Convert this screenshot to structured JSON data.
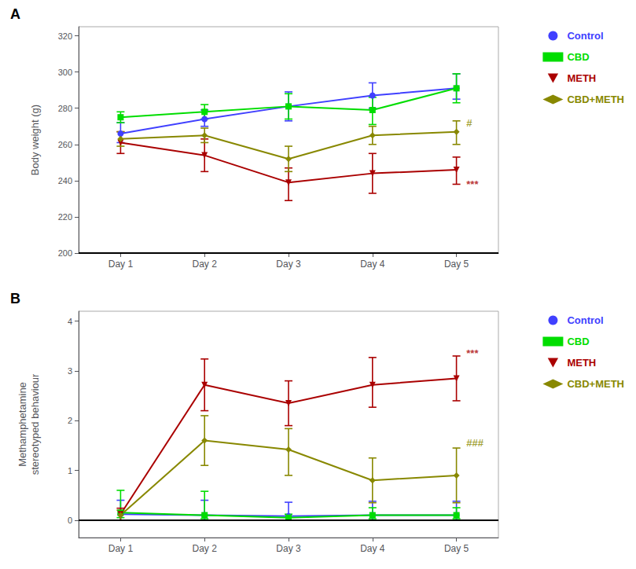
{
  "chart_data": [
    {
      "type": "line",
      "title": "A",
      "x": [
        1,
        2,
        3,
        4,
        5
      ],
      "xlim": [
        0.5,
        5.5
      ],
      "xticks": [
        {
          "value": 1,
          "label": "Day 1"
        },
        {
          "value": 2,
          "label": "Day 2"
        },
        {
          "value": 3,
          "label": "Day 3"
        },
        {
          "value": 4,
          "label": "Day 4"
        },
        {
          "value": 5,
          "label": "Day 5"
        }
      ],
      "ylabel": "Body weight (g)",
      "ylim": [
        200,
        325
      ],
      "yticks": [
        200,
        220,
        240,
        260,
        280,
        300,
        320
      ],
      "grid": false,
      "legend": "right",
      "baseline": 200,
      "series": [
        {
          "name": "Control",
          "color": "#4040FF",
          "marker": "circle",
          "values": [
            266,
            274,
            281,
            287,
            291
          ],
          "yerr_lo": [
            5,
            4,
            8,
            7,
            6
          ],
          "yerr_hi": [
            6,
            5,
            8,
            7,
            8
          ]
        },
        {
          "name": "CBD",
          "color": "#00DD00",
          "marker": "square",
          "values": [
            275,
            278,
            281,
            279,
            291
          ],
          "yerr_lo": [
            3,
            4,
            7,
            8,
            8
          ],
          "yerr_hi": [
            3,
            4,
            7,
            7,
            8
          ]
        },
        {
          "name": "METH",
          "color": "#AA0000",
          "marker": "triangle-down",
          "values": [
            261,
            254,
            239,
            244,
            246
          ],
          "yerr_lo": [
            6,
            9,
            10,
            11,
            8
          ],
          "yerr_hi": [
            6,
            9,
            8,
            11,
            7
          ]
        },
        {
          "name": "CBD+METH",
          "color": "#888800",
          "marker": "diamond",
          "values": [
            263,
            265,
            252,
            265,
            267
          ],
          "yerr_lo": [
            4,
            4,
            7,
            5,
            7
          ],
          "yerr_hi": [
            4,
            4,
            7,
            5,
            6
          ]
        }
      ],
      "annotations": [
        {
          "text": "***",
          "x": 5.1,
          "y": 238,
          "color": "#AA0000"
        },
        {
          "text": "#",
          "x": 5.1,
          "y": 272,
          "color": "#888800"
        }
      ]
    },
    {
      "type": "line",
      "title": "B",
      "x": [
        1,
        2,
        3,
        4,
        5
      ],
      "xlim": [
        0.5,
        5.5
      ],
      "xticks": [
        {
          "value": 1,
          "label": "Day 1"
        },
        {
          "value": 2,
          "label": "Day 2"
        },
        {
          "value": 3,
          "label": "Day 3"
        },
        {
          "value": 4,
          "label": "Day 4"
        },
        {
          "value": 5,
          "label": "Day 5"
        }
      ],
      "ylabel": "Methamphetamine\nstereotyped behaviour",
      "ylim": [
        -0.35,
        4.2
      ],
      "yticks": [
        0,
        1,
        2,
        3,
        4
      ],
      "grid": false,
      "legend": "right",
      "baseline": 0,
      "series": [
        {
          "name": "Control",
          "color": "#4040FF",
          "marker": "circle",
          "values": [
            0.12,
            0.1,
            0.08,
            0.1,
            0.1
          ],
          "yerr_lo": [
            0.12,
            0.1,
            0.08,
            0.1,
            0.1
          ],
          "yerr_hi": [
            0.28,
            0.3,
            0.28,
            0.28,
            0.28
          ]
        },
        {
          "name": "CBD",
          "color": "#00DD00",
          "marker": "square",
          "values": [
            0.15,
            0.1,
            0.05,
            0.1,
            0.1
          ],
          "yerr_lo": [
            0.1,
            0.07,
            0.05,
            0.07,
            0.07
          ],
          "yerr_hi": [
            0.45,
            0.48,
            0.07,
            0.15,
            0.15
          ]
        },
        {
          "name": "METH",
          "color": "#AA0000",
          "marker": "triangle-down",
          "values": [
            0.12,
            2.72,
            2.35,
            2.72,
            2.85
          ],
          "yerr_lo": [
            0.12,
            0.52,
            0.45,
            0.45,
            0.45
          ],
          "yerr_hi": [
            0.12,
            0.52,
            0.45,
            0.55,
            0.45
          ]
        },
        {
          "name": "CBD+METH",
          "color": "#888800",
          "marker": "diamond",
          "values": [
            0.1,
            1.6,
            1.42,
            0.8,
            0.9
          ],
          "yerr_lo": [
            0.1,
            0.5,
            0.52,
            0.45,
            0.55
          ],
          "yerr_hi": [
            0.1,
            0.5,
            0.42,
            0.45,
            0.55
          ]
        }
      ],
      "annotations": [
        {
          "text": "***",
          "x": 5.1,
          "y": 3.35,
          "color": "#AA0000"
        },
        {
          "text": "###",
          "x": 5.1,
          "y": 1.55,
          "color": "#888800"
        }
      ]
    }
  ]
}
